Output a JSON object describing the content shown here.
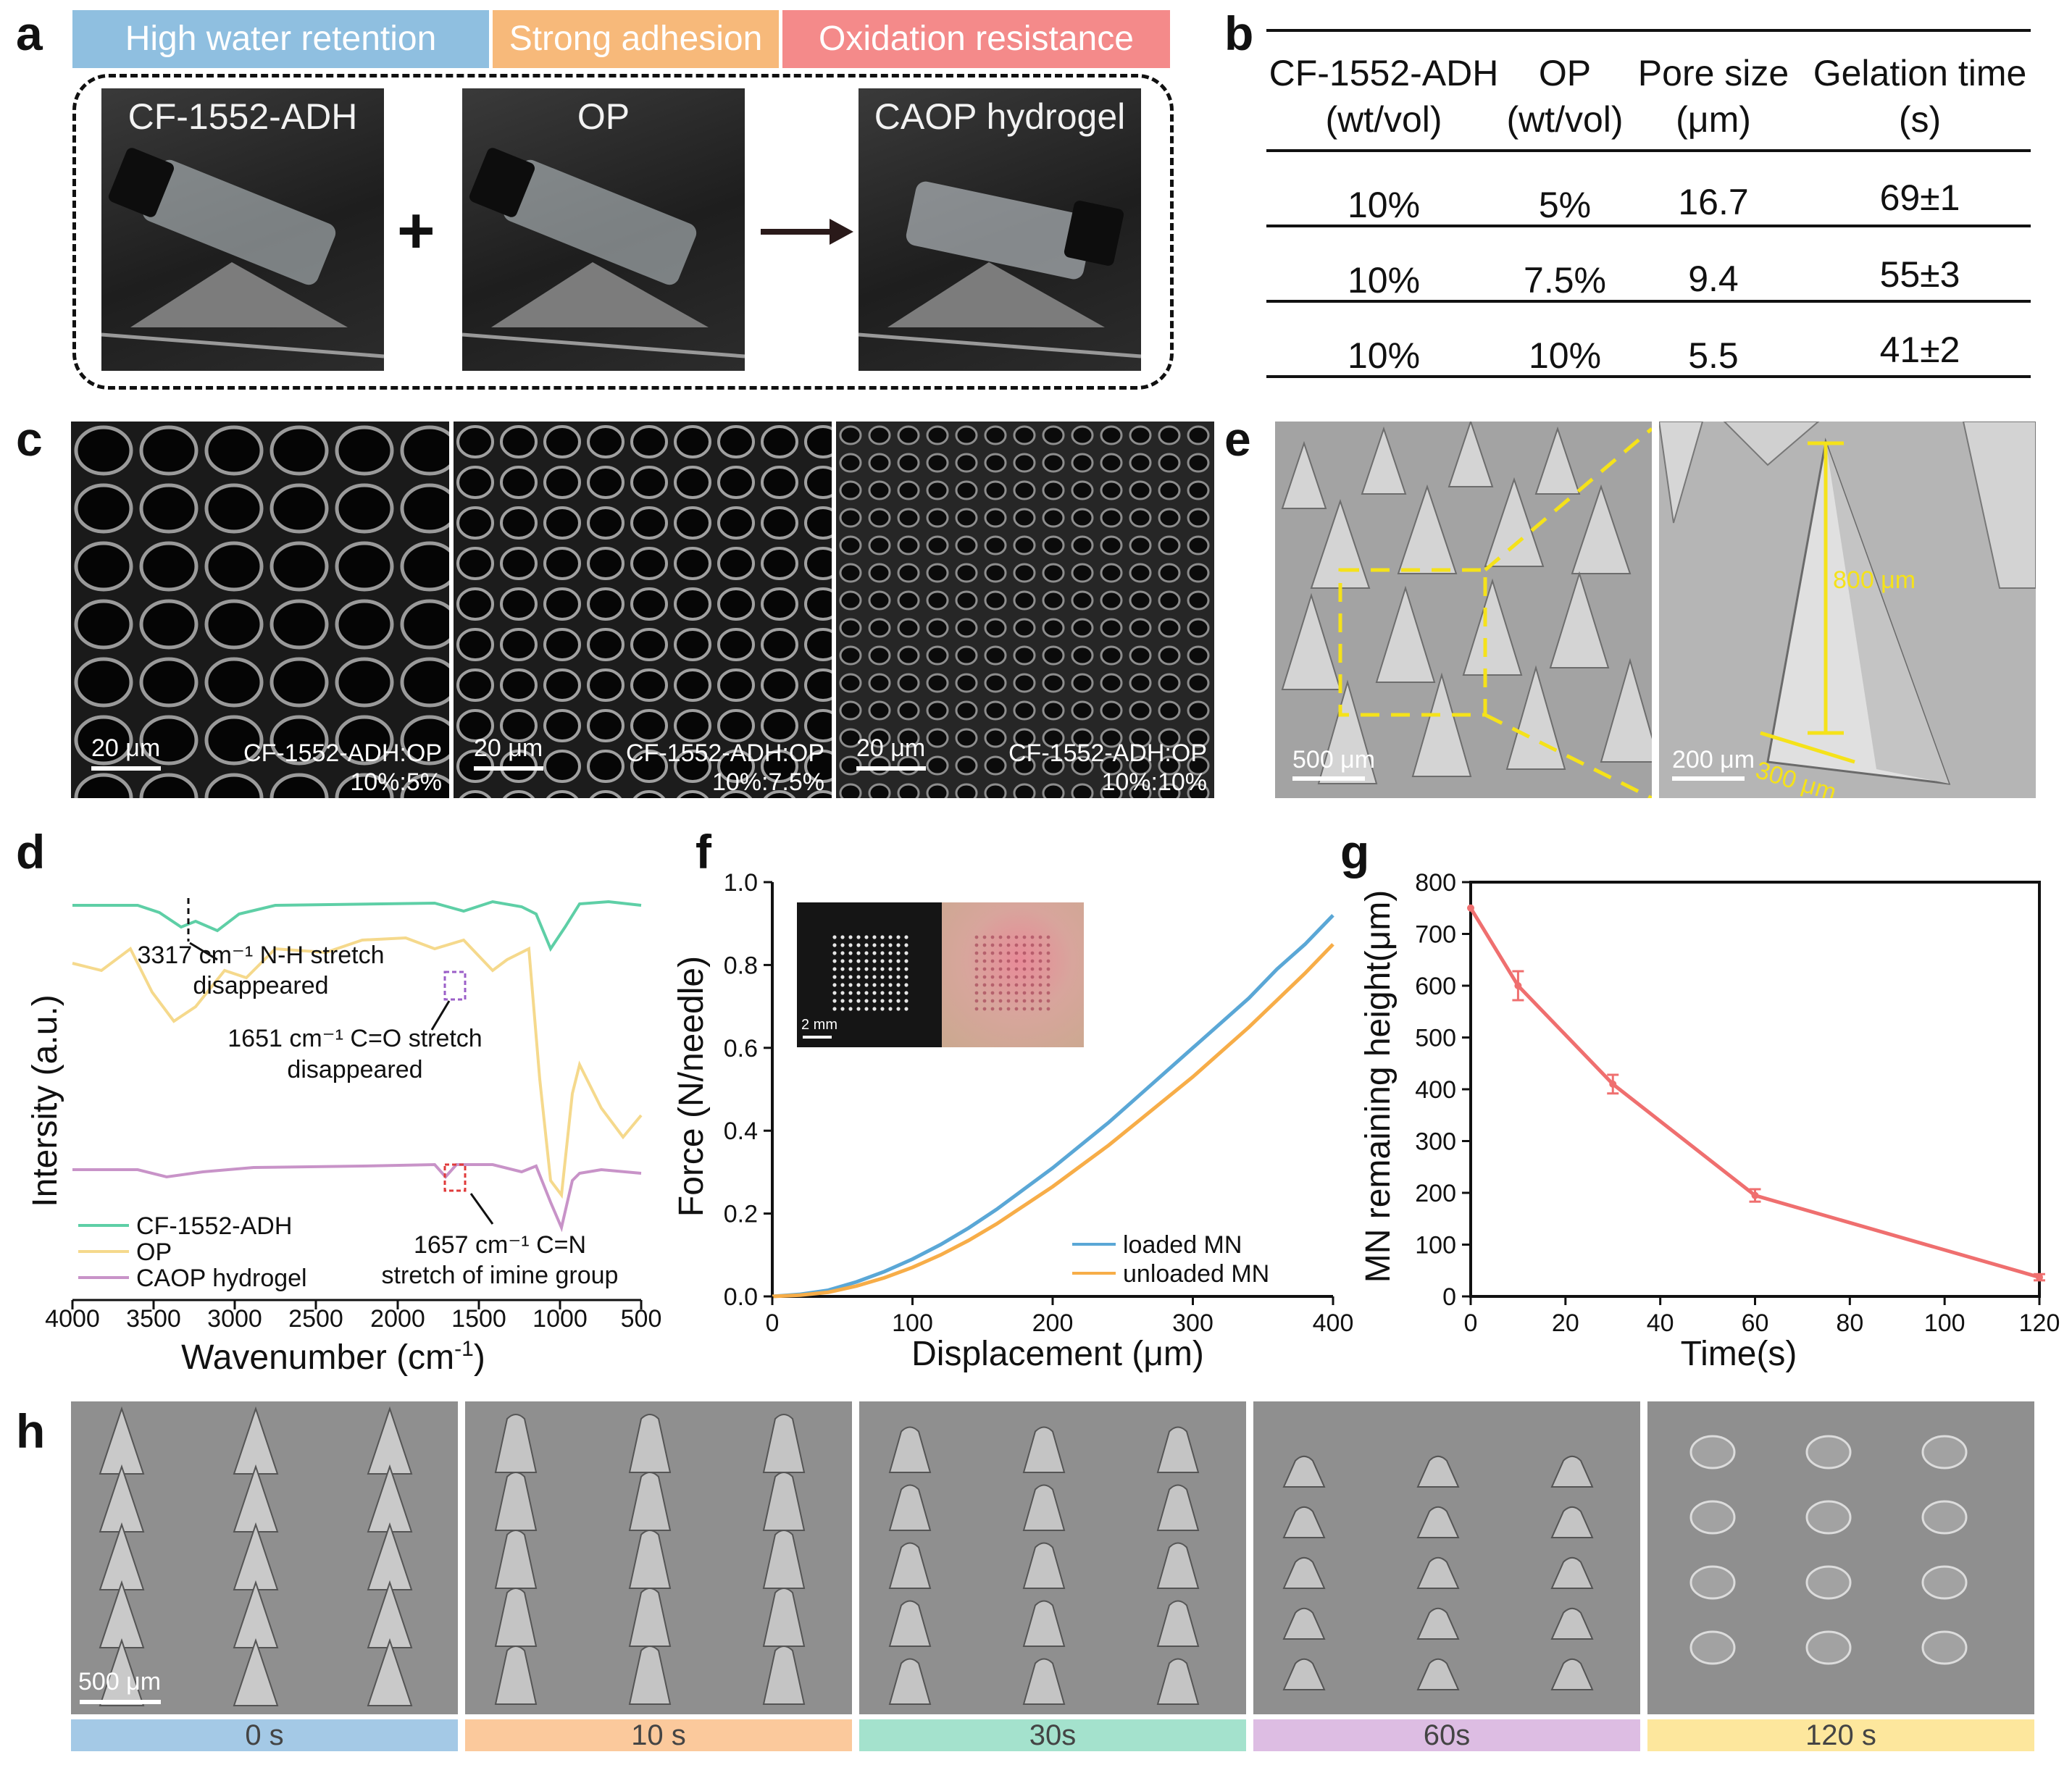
{
  "panel_labels": {
    "a": "a",
    "b": "b",
    "c": "c",
    "d": "d",
    "e": "e",
    "f": "f",
    "g": "g",
    "h": "h"
  },
  "panel_a": {
    "banners": [
      {
        "label": "High water retention",
        "color": "#8fbfe0"
      },
      {
        "label": "Strong adhesion",
        "color": "#f7b97a"
      },
      {
        "label": "Oxidation resistance",
        "color": "#f48a8a"
      }
    ],
    "photos": [
      "CF-1552-ADH",
      "OP",
      "CAOP hydrogel"
    ],
    "plus": "+"
  },
  "panel_b": {
    "headers": [
      [
        "CF-1552-ADH",
        "(wt/vol)"
      ],
      [
        "OP",
        "(wt/vol)"
      ],
      [
        "Pore size",
        "(μm)"
      ],
      [
        "Gelation time",
        "(s)"
      ]
    ],
    "rows": [
      [
        "10%",
        "5%",
        "16.7",
        "69±1"
      ],
      [
        "10%",
        "7.5%",
        "9.4",
        "55±3"
      ],
      [
        "10%",
        "10%",
        "5.5",
        "41±2"
      ]
    ]
  },
  "panel_c": {
    "scale_bar": "20 μm",
    "images": [
      {
        "name": "CF-1552-ADH:OP",
        "ratio": "10%:5%"
      },
      {
        "name": "CF-1552-ADH:OP",
        "ratio": "10%:7.5%"
      },
      {
        "name": "CF-1552-ADH:OP",
        "ratio": "10%:10%"
      }
    ]
  },
  "panel_e": {
    "scale_left": "500 μm",
    "scale_right": "200 μm",
    "height_label": "800 μm",
    "base_label": "300 μm",
    "accent": "#f5e21a"
  },
  "panel_d": {
    "xlabel": "Wavenumber (cm",
    "xlabel_sup": "-1",
    "xlabel_end": ")",
    "ylabel": "Intersity (a.u.)",
    "xticks": [
      "4000",
      "3500",
      "3000",
      "2500",
      "2000",
      "1500",
      "1000",
      "500"
    ],
    "annotations": [
      {
        "line1": "3317 cm⁻¹ N-H stretch",
        "line2": "disappeared"
      },
      {
        "line1": "1651 cm⁻¹ C=O stretch",
        "line2": "disappeared"
      },
      {
        "line1": "1657 cm⁻¹ C=N",
        "line2": "stretch of imine group"
      }
    ],
    "legend": [
      {
        "label": "CF-1552-ADH",
        "color": "#5ecfa6"
      },
      {
        "label": "OP",
        "color": "#f5d98c"
      },
      {
        "label": "CAOP hydrogel",
        "color": "#c893c8"
      }
    ]
  },
  "panel_f": {
    "inset_scale": "2 mm",
    "legend": [
      {
        "label": "loaded MN",
        "color": "#5aa7d6"
      },
      {
        "label": "unloaded MN",
        "color": "#f7ad48"
      }
    ]
  },
  "panel_h": {
    "scale_bar": "500 μm",
    "frames": [
      {
        "label": "0 s",
        "color": "#a4c9e6"
      },
      {
        "label": "10 s",
        "color": "#fbc99c"
      },
      {
        "label": "30s",
        "color": "#a4e2cd"
      },
      {
        "label": "60s",
        "color": "#ddbde3"
      },
      {
        "label": "120 s",
        "color": "#fde79d"
      }
    ]
  },
  "chart_data": [
    {
      "type": "line",
      "panel": "f",
      "title": "",
      "xlabel": "Displacement (μm)",
      "ylabel": "Force (N/needle)",
      "xlim": [
        0,
        400
      ],
      "ylim": [
        0,
        1.0
      ],
      "xticks": [
        0,
        100,
        200,
        300,
        400
      ],
      "yticks": [
        0.0,
        0.2,
        0.4,
        0.6,
        0.8,
        1.0
      ],
      "series": [
        {
          "name": "loaded MN",
          "x": [
            0,
            20,
            40,
            60,
            80,
            100,
            120,
            140,
            160,
            180,
            200,
            220,
            240,
            260,
            280,
            300,
            320,
            340,
            360,
            380,
            400
          ],
          "values": [
            0,
            0.005,
            0.015,
            0.035,
            0.06,
            0.09,
            0.125,
            0.165,
            0.21,
            0.26,
            0.31,
            0.365,
            0.42,
            0.48,
            0.54,
            0.6,
            0.66,
            0.72,
            0.79,
            0.85,
            0.92
          ]
        },
        {
          "name": "unloaded MN",
          "x": [
            0,
            20,
            40,
            60,
            80,
            100,
            120,
            140,
            160,
            180,
            200,
            220,
            240,
            260,
            280,
            300,
            320,
            340,
            360,
            380,
            400
          ],
          "values": [
            0,
            0.003,
            0.01,
            0.025,
            0.045,
            0.07,
            0.1,
            0.135,
            0.175,
            0.22,
            0.265,
            0.315,
            0.365,
            0.42,
            0.475,
            0.53,
            0.59,
            0.65,
            0.715,
            0.78,
            0.85
          ]
        }
      ]
    },
    {
      "type": "line",
      "panel": "g",
      "title": "",
      "xlabel": "Time(s)",
      "ylabel": "MN remaining height(μm)",
      "xlim": [
        0,
        120
      ],
      "ylim": [
        0,
        800
      ],
      "xticks": [
        0,
        20,
        40,
        60,
        80,
        100,
        120
      ],
      "yticks": [
        0,
        100,
        200,
        300,
        400,
        500,
        600,
        700,
        800
      ],
      "series": [
        {
          "name": "MN remaining height",
          "x": [
            0,
            10,
            30,
            60,
            120
          ],
          "values": [
            750,
            600,
            410,
            195,
            37
          ],
          "errors": [
            0,
            28,
            18,
            12,
            6
          ],
          "color": "#ef6f6f"
        }
      ]
    }
  ]
}
